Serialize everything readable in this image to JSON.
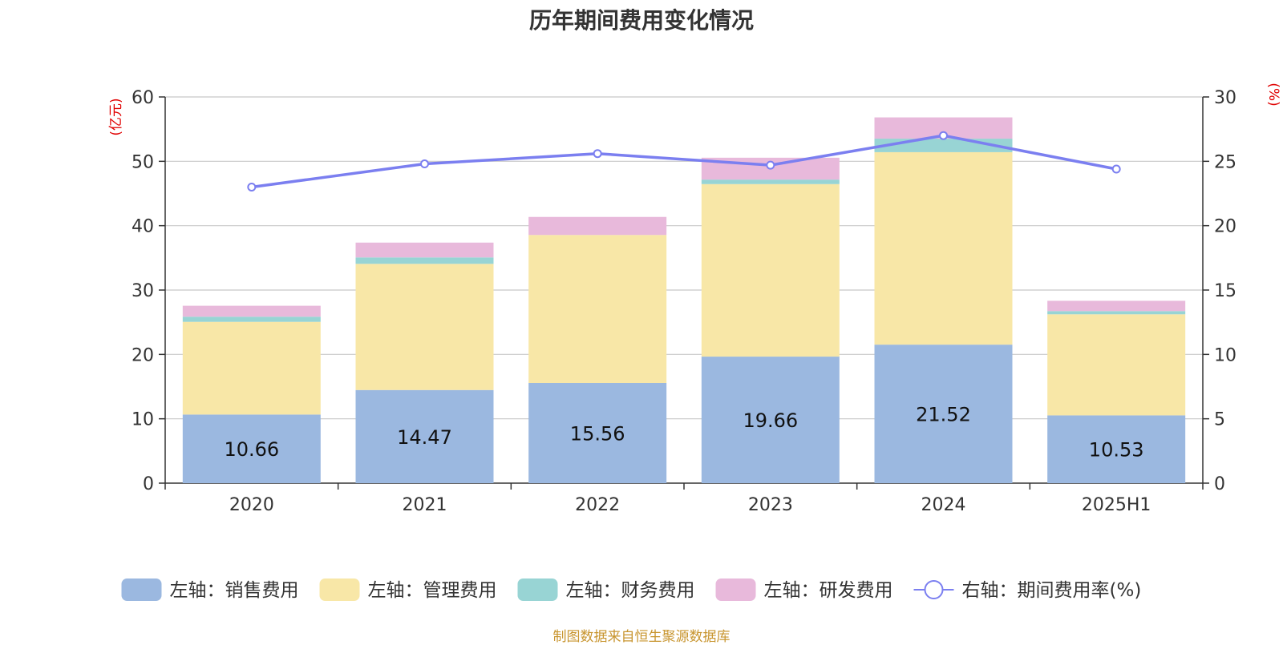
{
  "title": "历年期间费用变化情况",
  "source": "制图数据来自恒生聚源数据库",
  "chart_data": {
    "type": "bar",
    "stacked": true,
    "categories": [
      "2020",
      "2021",
      "2022",
      "2023",
      "2024",
      "2025H1"
    ],
    "y_left": {
      "unit_label": "(亿元)",
      "ylim": [
        0,
        60
      ],
      "ticks": [
        "0",
        "10",
        "20",
        "30",
        "40",
        "50",
        "60"
      ]
    },
    "y_right": {
      "unit_label": "(%)",
      "ylim": [
        0,
        30
      ],
      "ticks": [
        "0",
        "5",
        "10",
        "15",
        "20",
        "25",
        "30"
      ]
    },
    "grid": true,
    "legend_position": "bottom",
    "series": [
      {
        "name": "左轴：销售费用",
        "axis": "left",
        "type": "bar",
        "color": "#9bb8e0",
        "values": [
          10.66,
          14.47,
          15.56,
          19.66,
          21.52,
          10.53
        ],
        "show_labels": true
      },
      {
        "name": "左轴：管理费用",
        "axis": "left",
        "type": "bar",
        "color": "#f8e7a7",
        "values": [
          14.4,
          19.6,
          23.0,
          26.8,
          29.9,
          15.7
        ]
      },
      {
        "name": "左轴：财务费用",
        "axis": "left",
        "type": "bar",
        "color": "#98d4d4",
        "values": [
          0.8,
          1.0,
          0.0,
          0.7,
          2.1,
          0.5
        ]
      },
      {
        "name": "左轴：研发费用",
        "axis": "left",
        "type": "bar",
        "color": "#e8b9db",
        "values": [
          1.7,
          2.3,
          2.8,
          3.4,
          3.3,
          1.6
        ]
      },
      {
        "name": "右轴：期间费用率(%)",
        "axis": "right",
        "type": "line",
        "color": "#7b7ff0",
        "values": [
          23.0,
          24.8,
          25.6,
          24.7,
          27.0,
          24.4
        ]
      }
    ]
  }
}
